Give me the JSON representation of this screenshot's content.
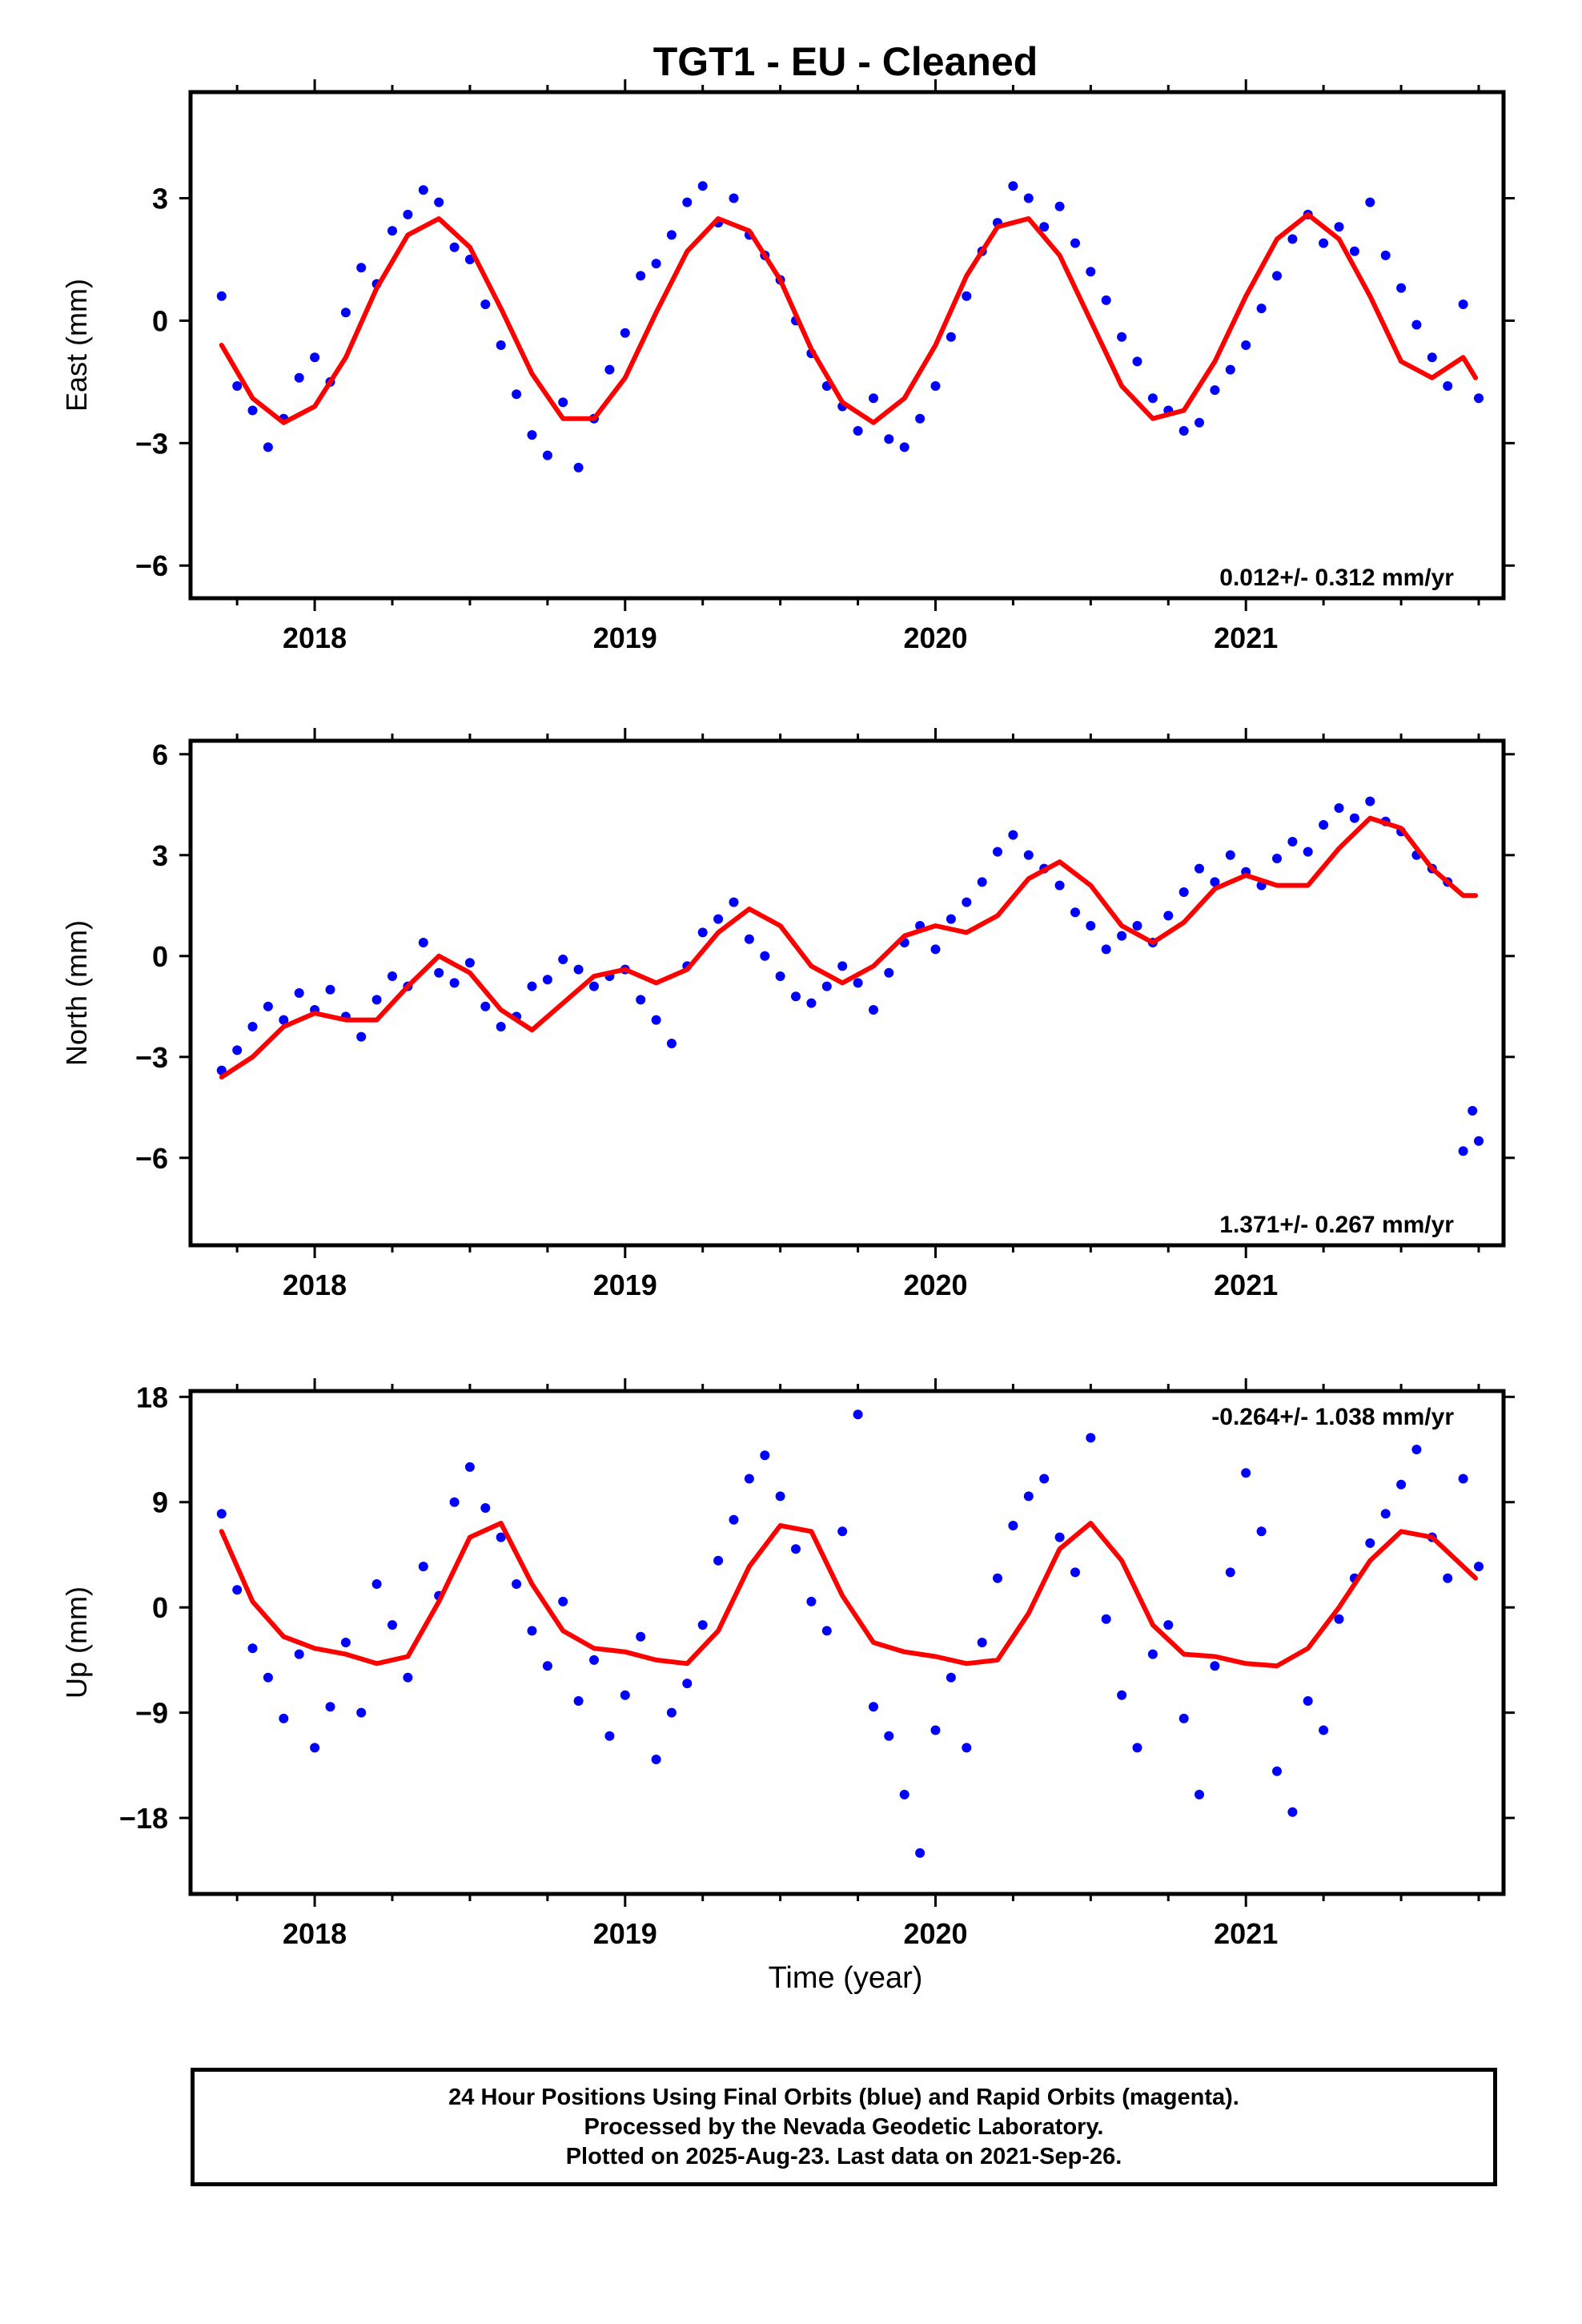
{
  "title": "TGT1  - EU - Cleaned",
  "xlabel": "Time (year)",
  "footer": {
    "lines": [
      "24 Hour Positions Using Final Orbits (blue) and Rapid Orbits (magenta).",
      "Processed by the Nevada Geodetic Laboratory.",
      "Plotted on 2025-Aug-23. Last data on 2021-Sep-26."
    ]
  },
  "colors": {
    "points": "#0000ff",
    "fit": "#ff0000",
    "axis": "#000000"
  },
  "chart_data": [
    {
      "type": "scatter",
      "ylabel": "East (mm)",
      "xlim": [
        2017.6,
        2021.83
      ],
      "ylim": [
        -6.8,
        5.6
      ],
      "x_ticks": [
        2018,
        2019,
        2020,
        2021
      ],
      "x_tick_labels": [
        "2018",
        "2019",
        "2020",
        "2021"
      ],
      "y_ticks": [
        3,
        0,
        -3,
        -6
      ],
      "y_tick_labels": [
        "3",
        "0",
        "−3",
        "−6"
      ],
      "rate_label": "0.012+/- 0.312 mm/yr",
      "rate_position": "bottom-right",
      "series": [
        {
          "role": "observations",
          "color": "#0000ff",
          "x": [
            2017.7,
            2017.75,
            2017.8,
            2017.85,
            2017.9,
            2017.95,
            2018.0,
            2018.05,
            2018.1,
            2018.15,
            2018.2,
            2018.25,
            2018.3,
            2018.35,
            2018.4,
            2018.45,
            2018.5,
            2018.55,
            2018.6,
            2018.65,
            2018.7,
            2018.75,
            2018.8,
            2018.85,
            2018.9,
            2018.95,
            2019.0,
            2019.05,
            2019.1,
            2019.15,
            2019.2,
            2019.25,
            2019.3,
            2019.35,
            2019.4,
            2019.45,
            2019.5,
            2019.55,
            2019.6,
            2019.65,
            2019.7,
            2019.75,
            2019.8,
            2019.85,
            2019.9,
            2019.95,
            2020.0,
            2020.05,
            2020.1,
            2020.15,
            2020.2,
            2020.25,
            2020.3,
            2020.35,
            2020.4,
            2020.45,
            2020.5,
            2020.55,
            2020.6,
            2020.65,
            2020.7,
            2020.75,
            2020.8,
            2020.85,
            2020.9,
            2020.95,
            2021.0,
            2021.05,
            2021.1,
            2021.15,
            2021.2,
            2021.25,
            2021.3,
            2021.35,
            2021.4,
            2021.45,
            2021.5,
            2021.55,
            2021.6,
            2021.65,
            2021.7,
            2021.75
          ],
          "y": [
            0.6,
            -1.6,
            -2.2,
            -3.1,
            -2.4,
            -1.4,
            -0.9,
            -1.5,
            0.2,
            1.3,
            0.9,
            2.2,
            2.6,
            3.2,
            2.9,
            1.8,
            1.5,
            0.4,
            -0.6,
            -1.8,
            -2.8,
            -3.3,
            -2.0,
            -3.6,
            -2.4,
            -1.2,
            -0.3,
            1.1,
            1.4,
            2.1,
            2.9,
            3.3,
            2.4,
            3.0,
            2.1,
            1.6,
            1.0,
            0.0,
            -0.8,
            -1.6,
            -2.1,
            -2.7,
            -1.9,
            -2.9,
            -3.1,
            -2.4,
            -1.6,
            -0.4,
            0.6,
            1.7,
            2.4,
            3.3,
            3.0,
            2.3,
            2.8,
            1.9,
            1.2,
            0.5,
            -0.4,
            -1.0,
            -1.9,
            -2.2,
            -2.7,
            -2.5,
            -1.7,
            -1.2,
            -0.6,
            0.3,
            1.1,
            2.0,
            2.6,
            1.9,
            2.3,
            1.7,
            2.9,
            1.6,
            0.8,
            -0.1,
            -0.9,
            -1.6,
            0.4,
            -1.9
          ]
        },
        {
          "role": "model",
          "color": "#ff0000",
          "x": [
            2017.7,
            2017.8,
            2017.9,
            2018.0,
            2018.1,
            2018.2,
            2018.3,
            2018.4,
            2018.5,
            2018.6,
            2018.7,
            2018.8,
            2018.9,
            2019.0,
            2019.1,
            2019.2,
            2019.3,
            2019.4,
            2019.5,
            2019.6,
            2019.7,
            2019.8,
            2019.9,
            2020.0,
            2020.1,
            2020.2,
            2020.3,
            2020.4,
            2020.5,
            2020.6,
            2020.7,
            2020.8,
            2020.9,
            2021.0,
            2021.1,
            2021.2,
            2021.3,
            2021.4,
            2021.5,
            2021.6,
            2021.7,
            2021.74
          ],
          "y": [
            -0.6,
            -1.9,
            -2.5,
            -2.1,
            -0.9,
            0.8,
            2.1,
            2.5,
            1.8,
            0.3,
            -1.3,
            -2.4,
            -2.4,
            -1.4,
            0.2,
            1.7,
            2.5,
            2.2,
            1.0,
            -0.7,
            -2.0,
            -2.5,
            -1.9,
            -0.6,
            1.1,
            2.3,
            2.5,
            1.6,
            0.0,
            -1.6,
            -2.4,
            -2.2,
            -1.0,
            0.6,
            2.0,
            2.6,
            2.0,
            0.6,
            -1.0,
            -1.4,
            -0.9,
            -1.4
          ]
        }
      ]
    },
    {
      "type": "scatter",
      "ylabel": "North (mm)",
      "xlim": [
        2017.6,
        2021.83
      ],
      "ylim": [
        -8.6,
        6.4
      ],
      "x_ticks": [
        2018,
        2019,
        2020,
        2021
      ],
      "x_tick_labels": [
        "2018",
        "2019",
        "2020",
        "2021"
      ],
      "y_ticks": [
        6,
        3,
        0,
        -3,
        -6
      ],
      "y_tick_labels": [
        "6",
        "3",
        "0",
        "−3",
        "−6"
      ],
      "rate_label": "1.371+/- 0.267 mm/yr",
      "rate_position": "bottom-right",
      "series": [
        {
          "role": "observations",
          "color": "#0000ff",
          "x": [
            2017.7,
            2017.75,
            2017.8,
            2017.85,
            2017.9,
            2017.95,
            2018.0,
            2018.05,
            2018.1,
            2018.15,
            2018.2,
            2018.25,
            2018.3,
            2018.35,
            2018.4,
            2018.45,
            2018.5,
            2018.55,
            2018.6,
            2018.65,
            2018.7,
            2018.75,
            2018.8,
            2018.85,
            2018.9,
            2018.95,
            2019.0,
            2019.05,
            2019.1,
            2019.15,
            2019.2,
            2019.25,
            2019.3,
            2019.35,
            2019.4,
            2019.45,
            2019.5,
            2019.55,
            2019.6,
            2019.65,
            2019.7,
            2019.75,
            2019.8,
            2019.85,
            2019.9,
            2019.95,
            2020.0,
            2020.05,
            2020.1,
            2020.15,
            2020.2,
            2020.25,
            2020.3,
            2020.35,
            2020.4,
            2020.45,
            2020.5,
            2020.55,
            2020.6,
            2020.65,
            2020.7,
            2020.75,
            2020.8,
            2020.85,
            2020.9,
            2020.95,
            2021.0,
            2021.05,
            2021.1,
            2021.15,
            2021.2,
            2021.25,
            2021.3,
            2021.35,
            2021.4,
            2021.45,
            2021.5,
            2021.55,
            2021.6,
            2021.65,
            2021.7,
            2021.73,
            2021.75
          ],
          "y": [
            -3.4,
            -2.8,
            -2.1,
            -1.5,
            -1.9,
            -1.1,
            -1.6,
            -1.0,
            -1.8,
            -2.4,
            -1.3,
            -0.6,
            -0.9,
            0.4,
            -0.5,
            -0.8,
            -0.2,
            -1.5,
            -2.1,
            -1.8,
            -0.9,
            -0.7,
            -0.1,
            -0.4,
            -0.9,
            -0.6,
            -0.4,
            -1.3,
            -1.9,
            -2.6,
            -0.3,
            0.7,
            1.1,
            1.6,
            0.5,
            0.0,
            -0.6,
            -1.2,
            -1.4,
            -0.9,
            -0.3,
            -0.8,
            -1.6,
            -0.5,
            0.4,
            0.9,
            0.2,
            1.1,
            1.6,
            2.2,
            3.1,
            3.6,
            3.0,
            2.6,
            2.1,
            1.3,
            0.9,
            0.2,
            0.6,
            0.9,
            0.4,
            1.2,
            1.9,
            2.6,
            2.2,
            3.0,
            2.5,
            2.1,
            2.9,
            3.4,
            3.1,
            3.9,
            4.4,
            4.1,
            4.6,
            4.0,
            3.7,
            3.0,
            2.6,
            2.2,
            -5.8,
            -4.6,
            -5.5
          ]
        },
        {
          "role": "model",
          "color": "#ff0000",
          "x": [
            2017.7,
            2017.8,
            2017.9,
            2018.0,
            2018.1,
            2018.2,
            2018.3,
            2018.4,
            2018.5,
            2018.6,
            2018.7,
            2018.8,
            2018.9,
            2019.0,
            2019.1,
            2019.2,
            2019.3,
            2019.4,
            2019.5,
            2019.6,
            2019.7,
            2019.8,
            2019.9,
            2020.0,
            2020.1,
            2020.2,
            2020.3,
            2020.4,
            2020.5,
            2020.6,
            2020.7,
            2020.8,
            2020.9,
            2021.0,
            2021.1,
            2021.2,
            2021.3,
            2021.4,
            2021.5,
            2021.6,
            2021.7,
            2021.74
          ],
          "y": [
            -3.6,
            -3.0,
            -2.1,
            -1.7,
            -1.9,
            -1.9,
            -0.9,
            0.0,
            -0.5,
            -1.6,
            -2.2,
            -1.4,
            -0.6,
            -0.4,
            -0.8,
            -0.4,
            0.7,
            1.4,
            0.9,
            -0.3,
            -0.8,
            -0.3,
            0.6,
            0.9,
            0.7,
            1.2,
            2.3,
            2.8,
            2.1,
            0.9,
            0.4,
            1.0,
            2.0,
            2.4,
            2.1,
            2.1,
            3.2,
            4.1,
            3.8,
            2.6,
            1.8,
            1.8
          ]
        }
      ]
    },
    {
      "type": "scatter",
      "ylabel": "Up (mm)",
      "xlim": [
        2017.6,
        2021.83
      ],
      "ylim": [
        -24.5,
        18.5
      ],
      "x_ticks": [
        2018,
        2019,
        2020,
        2021
      ],
      "x_tick_labels": [
        "2018",
        "2019",
        "2020",
        "2021"
      ],
      "y_ticks": [
        18,
        9,
        0,
        -9,
        -18
      ],
      "y_tick_labels": [
        "18",
        "9",
        "0",
        "−9",
        "−18"
      ],
      "rate_label": "-0.264+/- 1.038 mm/yr",
      "rate_position": "top-right",
      "series": [
        {
          "role": "observations",
          "color": "#0000ff",
          "x": [
            2017.7,
            2017.75,
            2017.8,
            2017.85,
            2017.9,
            2017.95,
            2018.0,
            2018.05,
            2018.1,
            2018.15,
            2018.2,
            2018.25,
            2018.3,
            2018.35,
            2018.4,
            2018.45,
            2018.5,
            2018.55,
            2018.6,
            2018.65,
            2018.7,
            2018.75,
            2018.8,
            2018.85,
            2018.9,
            2018.95,
            2019.0,
            2019.05,
            2019.1,
            2019.15,
            2019.2,
            2019.25,
            2019.3,
            2019.35,
            2019.4,
            2019.45,
            2019.5,
            2019.55,
            2019.6,
            2019.65,
            2019.7,
            2019.75,
            2019.8,
            2019.85,
            2019.9,
            2019.95,
            2020.0,
            2020.05,
            2020.1,
            2020.15,
            2020.2,
            2020.25,
            2020.3,
            2020.35,
            2020.4,
            2020.45,
            2020.5,
            2020.55,
            2020.6,
            2020.65,
            2020.7,
            2020.75,
            2020.8,
            2020.85,
            2020.9,
            2020.95,
            2021.0,
            2021.05,
            2021.1,
            2021.15,
            2021.2,
            2021.25,
            2021.3,
            2021.35,
            2021.4,
            2021.45,
            2021.5,
            2021.55,
            2021.6,
            2021.65,
            2021.7,
            2021.75
          ],
          "y": [
            8.0,
            1.5,
            -3.5,
            -6.0,
            -9.5,
            -4.0,
            -12.0,
            -8.5,
            -3.0,
            -9.0,
            2.0,
            -1.5,
            -6.0,
            3.5,
            1.0,
            9.0,
            12.0,
            8.5,
            6.0,
            2.0,
            -2.0,
            -5.0,
            0.5,
            -8.0,
            -4.5,
            -11.0,
            -7.5,
            -2.5,
            -13.0,
            -9.0,
            -6.5,
            -1.5,
            4.0,
            7.5,
            11.0,
            13.0,
            9.5,
            5.0,
            0.5,
            -2.0,
            6.5,
            16.5,
            -8.5,
            -11.0,
            -16.0,
            -21.0,
            -10.5,
            -6.0,
            -12.0,
            -3.0,
            2.5,
            7.0,
            9.5,
            11.0,
            6.0,
            3.0,
            14.5,
            -1.0,
            -7.5,
            -12.0,
            -4.0,
            -1.5,
            -9.5,
            -16.0,
            -5.0,
            3.0,
            11.5,
            6.5,
            -14.0,
            -17.5,
            -8.0,
            -10.5,
            -1.0,
            2.5,
            5.5,
            8.0,
            10.5,
            13.5,
            6.0,
            2.5,
            11.0,
            3.5
          ]
        },
        {
          "role": "model",
          "color": "#ff0000",
          "x": [
            2017.7,
            2017.8,
            2017.9,
            2018.0,
            2018.1,
            2018.2,
            2018.3,
            2018.4,
            2018.5,
            2018.6,
            2018.7,
            2018.8,
            2018.9,
            2019.0,
            2019.1,
            2019.2,
            2019.3,
            2019.4,
            2019.5,
            2019.6,
            2019.7,
            2019.8,
            2019.9,
            2020.0,
            2020.1,
            2020.2,
            2020.3,
            2020.4,
            2020.5,
            2020.6,
            2020.7,
            2020.8,
            2020.9,
            2021.0,
            2021.1,
            2021.2,
            2021.3,
            2021.4,
            2021.5,
            2021.6,
            2021.7,
            2021.74
          ],
          "y": [
            6.5,
            0.5,
            -2.5,
            -3.5,
            -4.0,
            -4.8,
            -4.2,
            0.5,
            6.0,
            7.2,
            2.0,
            -2.0,
            -3.5,
            -3.8,
            -4.5,
            -4.8,
            -2.0,
            3.5,
            7.0,
            6.5,
            1.0,
            -3.0,
            -3.8,
            -4.2,
            -4.8,
            -4.5,
            -0.5,
            5.0,
            7.2,
            4.0,
            -1.5,
            -4.0,
            -4.2,
            -4.8,
            -5.0,
            -3.5,
            0.0,
            4.0,
            6.5,
            6.0,
            3.5,
            2.5
          ]
        }
      ]
    }
  ]
}
